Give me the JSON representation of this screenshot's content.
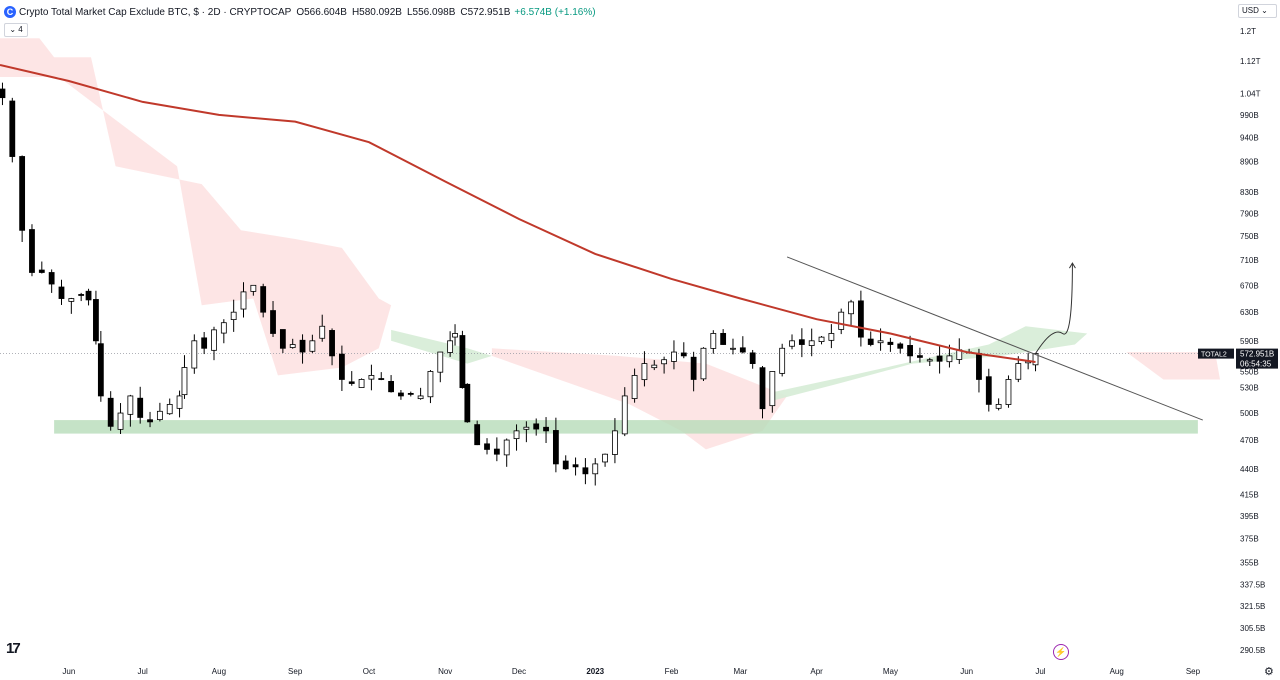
{
  "header": {
    "symbol_icon": "C",
    "title": "Crypto Total Market Cap Exclude BTC, $ · 2D · CRYPTOCAP",
    "open": "O566.604B",
    "high": "H580.092B",
    "low": "L556.098B",
    "close": "C572.951B",
    "change": "+6.574B (+1.16%)"
  },
  "indicators_toggle": "⌄ 4",
  "currency": "USD ⌄",
  "tv_logo": "17",
  "bolt_icon": "⚡",
  "gear_icon": "⚙",
  "colors": {
    "up_candle": "#ffffff",
    "down_candle": "#000000",
    "moving_average": "#c0392b",
    "cloud_bear": "#fde2e2",
    "cloud_bull": "#d6ecd6",
    "support_zone": "#b7dcb9",
    "trendline": "#555555",
    "price_label_bg": "#131722"
  },
  "chart_data": {
    "type": "candlestick",
    "symbol": "TOTAL2",
    "timeframe": "2D",
    "scale": "log",
    "y_ticks": [
      "1.2T",
      "1.12T",
      "1.04T",
      "990B",
      "940B",
      "890B",
      "830B",
      "790B",
      "750B",
      "710B",
      "670B",
      "630B",
      "590B",
      "550B",
      "530B",
      "500B",
      "470B",
      "440B",
      "415B",
      "395B",
      "375B",
      "355B",
      "337.5B",
      "321.5B",
      "305.5B",
      "290.5B"
    ],
    "y_tick_values": [
      1200,
      1120,
      1040,
      990,
      940,
      890,
      830,
      790,
      750,
      710,
      670,
      630,
      590,
      550,
      530,
      500,
      470,
      440,
      415,
      395,
      375,
      355,
      337.5,
      321.5,
      305.5,
      290.5
    ],
    "x_ticks": [
      "Jun",
      "Jul",
      "Aug",
      "Sep",
      "Oct",
      "Nov",
      "Dec",
      "2023",
      "Feb",
      "Mar",
      "Apr",
      "May",
      "Jun",
      "Jul",
      "Aug",
      "Sep"
    ],
    "x_tick_dates": [
      "2022-06-01",
      "2022-07-01",
      "2022-08-01",
      "2022-09-01",
      "2022-10-01",
      "2022-11-01",
      "2022-12-01",
      "2023-01-01",
      "2023-02-01",
      "2023-03-01",
      "2023-04-01",
      "2023-05-01",
      "2023-06-01",
      "2023-07-01",
      "2023-08-01",
      "2023-09-01"
    ],
    "x_range": [
      "2022-05-04",
      "2023-09-12"
    ],
    "last_date": "2023-06-29",
    "price_label": {
      "symbol": "TOTAL2",
      "value": "572.951B",
      "countdown": "06:54:35",
      "price": 572.951
    },
    "closes": [
      {
        "date": "2022-05-05",
        "close": 1030
      },
      {
        "date": "2022-05-09",
        "close": 900
      },
      {
        "date": "2022-05-13",
        "close": 760
      },
      {
        "date": "2022-05-17",
        "close": 690
      },
      {
        "date": "2022-05-21",
        "close": 690
      },
      {
        "date": "2022-05-25",
        "close": 672
      },
      {
        "date": "2022-05-29",
        "close": 650
      },
      {
        "date": "2022-06-02",
        "close": 650
      },
      {
        "date": "2022-06-06",
        "close": 655
      },
      {
        "date": "2022-06-09",
        "close": 648
      },
      {
        "date": "2022-06-12",
        "close": 590
      },
      {
        "date": "2022-06-14",
        "close": 520
      },
      {
        "date": "2022-06-18",
        "close": 485
      },
      {
        "date": "2022-06-22",
        "close": 500
      },
      {
        "date": "2022-06-26",
        "close": 520
      },
      {
        "date": "2022-06-30",
        "close": 495
      },
      {
        "date": "2022-07-04",
        "close": 490
      },
      {
        "date": "2022-07-08",
        "close": 502
      },
      {
        "date": "2022-07-12",
        "close": 510
      },
      {
        "date": "2022-07-16",
        "close": 520
      },
      {
        "date": "2022-07-18",
        "close": 555
      },
      {
        "date": "2022-07-22",
        "close": 590
      },
      {
        "date": "2022-07-26",
        "close": 580
      },
      {
        "date": "2022-07-30",
        "close": 605
      },
      {
        "date": "2022-08-03",
        "close": 615
      },
      {
        "date": "2022-08-07",
        "close": 630
      },
      {
        "date": "2022-08-11",
        "close": 660
      },
      {
        "date": "2022-08-15",
        "close": 670
      },
      {
        "date": "2022-08-19",
        "close": 630
      },
      {
        "date": "2022-08-23",
        "close": 600
      },
      {
        "date": "2022-08-27",
        "close": 580
      },
      {
        "date": "2022-08-31",
        "close": 585
      },
      {
        "date": "2022-09-04",
        "close": 575
      },
      {
        "date": "2022-09-08",
        "close": 590
      },
      {
        "date": "2022-09-12",
        "close": 610
      },
      {
        "date": "2022-09-16",
        "close": 570
      },
      {
        "date": "2022-09-20",
        "close": 540
      },
      {
        "date": "2022-09-24",
        "close": 535
      },
      {
        "date": "2022-09-28",
        "close": 540
      },
      {
        "date": "2022-10-02",
        "close": 545
      },
      {
        "date": "2022-10-06",
        "close": 540
      },
      {
        "date": "2022-10-10",
        "close": 525
      },
      {
        "date": "2022-10-14",
        "close": 520
      },
      {
        "date": "2022-10-18",
        "close": 522
      },
      {
        "date": "2022-10-22",
        "close": 520
      },
      {
        "date": "2022-10-26",
        "close": 550
      },
      {
        "date": "2022-10-30",
        "close": 575
      },
      {
        "date": "2022-11-03",
        "close": 590
      },
      {
        "date": "2022-11-05",
        "close": 600
      },
      {
        "date": "2022-11-08",
        "close": 530
      },
      {
        "date": "2022-11-10",
        "close": 490
      },
      {
        "date": "2022-11-14",
        "close": 465
      },
      {
        "date": "2022-11-18",
        "close": 460
      },
      {
        "date": "2022-11-22",
        "close": 455
      },
      {
        "date": "2022-11-26",
        "close": 470
      },
      {
        "date": "2022-11-30",
        "close": 480
      },
      {
        "date": "2022-12-04",
        "close": 484
      },
      {
        "date": "2022-12-08",
        "close": 482
      },
      {
        "date": "2022-12-12",
        "close": 480
      },
      {
        "date": "2022-12-16",
        "close": 445
      },
      {
        "date": "2022-12-20",
        "close": 440
      },
      {
        "date": "2022-12-24",
        "close": 442
      },
      {
        "date": "2022-12-28",
        "close": 435
      },
      {
        "date": "2023-01-01",
        "close": 445
      },
      {
        "date": "2023-01-05",
        "close": 455
      },
      {
        "date": "2023-01-09",
        "close": 480
      },
      {
        "date": "2023-01-13",
        "close": 520
      },
      {
        "date": "2023-01-17",
        "close": 545
      },
      {
        "date": "2023-01-21",
        "close": 560
      },
      {
        "date": "2023-01-25",
        "close": 558
      },
      {
        "date": "2023-01-29",
        "close": 565
      },
      {
        "date": "2023-02-02",
        "close": 575
      },
      {
        "date": "2023-02-06",
        "close": 570
      },
      {
        "date": "2023-02-10",
        "close": 540
      },
      {
        "date": "2023-02-14",
        "close": 580
      },
      {
        "date": "2023-02-18",
        "close": 600
      },
      {
        "date": "2023-02-22",
        "close": 585
      },
      {
        "date": "2023-02-26",
        "close": 580
      },
      {
        "date": "2023-03-02",
        "close": 575
      },
      {
        "date": "2023-03-06",
        "close": 560
      },
      {
        "date": "2023-03-10",
        "close": 505
      },
      {
        "date": "2023-03-14",
        "close": 550
      },
      {
        "date": "2023-03-18",
        "close": 580
      },
      {
        "date": "2023-03-22",
        "close": 590
      },
      {
        "date": "2023-03-26",
        "close": 585
      },
      {
        "date": "2023-03-30",
        "close": 590
      },
      {
        "date": "2023-04-03",
        "close": 595
      },
      {
        "date": "2023-04-07",
        "close": 600
      },
      {
        "date": "2023-04-11",
        "close": 630
      },
      {
        "date": "2023-04-15",
        "close": 645
      },
      {
        "date": "2023-04-19",
        "close": 595
      },
      {
        "date": "2023-04-23",
        "close": 585
      },
      {
        "date": "2023-04-27",
        "close": 590
      },
      {
        "date": "2023-05-01",
        "close": 585
      },
      {
        "date": "2023-05-05",
        "close": 580
      },
      {
        "date": "2023-05-09",
        "close": 570
      },
      {
        "date": "2023-05-13",
        "close": 568
      },
      {
        "date": "2023-05-17",
        "close": 565
      },
      {
        "date": "2023-05-21",
        "close": 563
      },
      {
        "date": "2023-05-25",
        "close": 570
      },
      {
        "date": "2023-05-29",
        "close": 578
      },
      {
        "date": "2023-06-02",
        "close": 575
      },
      {
        "date": "2023-06-06",
        "close": 540
      },
      {
        "date": "2023-06-10",
        "close": 510
      },
      {
        "date": "2023-06-14",
        "close": 510
      },
      {
        "date": "2023-06-18",
        "close": 540
      },
      {
        "date": "2023-06-22",
        "close": 560
      },
      {
        "date": "2023-06-26",
        "close": 563
      },
      {
        "date": "2023-06-29",
        "close": 573
      }
    ],
    "moving_average": [
      {
        "date": "2022-05-04",
        "value": 1110
      },
      {
        "date": "2022-06-01",
        "value": 1070
      },
      {
        "date": "2022-07-01",
        "value": 1020
      },
      {
        "date": "2022-08-01",
        "value": 990
      },
      {
        "date": "2022-09-01",
        "value": 975
      },
      {
        "date": "2022-10-01",
        "value": 930
      },
      {
        "date": "2022-11-01",
        "value": 850
      },
      {
        "date": "2022-12-01",
        "value": 780
      },
      {
        "date": "2023-01-01",
        "value": 720
      },
      {
        "date": "2023-02-01",
        "value": 680
      },
      {
        "date": "2023-03-01",
        "value": 650
      },
      {
        "date": "2023-04-01",
        "value": 620
      },
      {
        "date": "2023-05-01",
        "value": 600
      },
      {
        "date": "2023-06-01",
        "value": 575
      },
      {
        "date": "2023-06-29",
        "value": 562
      }
    ],
    "ichimoku_cloud": [
      {
        "kind": "bear",
        "points": [
          {
            "date": "2022-05-04",
            "price": 1180
          },
          {
            "date": "2022-05-20",
            "price": 1180
          },
          {
            "date": "2022-05-26",
            "price": 1130
          },
          {
            "date": "2022-06-10",
            "price": 1130
          },
          {
            "date": "2022-06-20",
            "price": 880
          },
          {
            "date": "2022-07-25",
            "price": 845
          },
          {
            "date": "2022-08-10",
            "price": 760
          },
          {
            "date": "2022-09-01",
            "price": 745
          },
          {
            "date": "2022-09-20",
            "price": 730
          },
          {
            "date": "2022-10-05",
            "price": 650
          },
          {
            "date": "2022-10-10",
            "price": 640
          },
          {
            "date": "2022-10-05",
            "price": 580
          },
          {
            "date": "2022-09-20",
            "price": 555
          },
          {
            "date": "2022-08-25",
            "price": 545
          },
          {
            "date": "2022-08-15",
            "price": 650
          },
          {
            "date": "2022-07-25",
            "price": 640
          },
          {
            "date": "2022-07-15",
            "price": 880
          },
          {
            "date": "2022-06-15",
            "price": 1000
          },
          {
            "date": "2022-05-28",
            "price": 1080
          },
          {
            "date": "2022-05-04",
            "price": 1080
          }
        ]
      },
      {
        "kind": "bull",
        "points": [
          {
            "date": "2022-10-10",
            "price": 605
          },
          {
            "date": "2022-11-10",
            "price": 580
          },
          {
            "date": "2022-11-20",
            "price": 570
          },
          {
            "date": "2022-11-10",
            "price": 560
          },
          {
            "date": "2022-10-10",
            "price": 590
          }
        ]
      },
      {
        "kind": "bear",
        "points": [
          {
            "date": "2022-11-20",
            "price": 580
          },
          {
            "date": "2023-01-10",
            "price": 570
          },
          {
            "date": "2023-02-15",
            "price": 560
          },
          {
            "date": "2023-03-20",
            "price": 520
          },
          {
            "date": "2023-03-10",
            "price": 480
          },
          {
            "date": "2023-02-15",
            "price": 460
          },
          {
            "date": "2023-02-05",
            "price": 480
          },
          {
            "date": "2023-01-15",
            "price": 510
          },
          {
            "date": "2022-11-20",
            "price": 570
          }
        ]
      },
      {
        "kind": "bull",
        "points": [
          {
            "date": "2023-03-15",
            "price": 525
          },
          {
            "date": "2023-04-15",
            "price": 545
          },
          {
            "date": "2023-05-20",
            "price": 570
          },
          {
            "date": "2023-06-10",
            "price": 585
          },
          {
            "date": "2023-06-25",
            "price": 610
          },
          {
            "date": "2023-07-20",
            "price": 600
          },
          {
            "date": "2023-07-15",
            "price": 585
          },
          {
            "date": "2023-06-15",
            "price": 570
          },
          {
            "date": "2023-05-10",
            "price": 560
          },
          {
            "date": "2023-04-10",
            "price": 535
          },
          {
            "date": "2023-03-15",
            "price": 515
          }
        ]
      },
      {
        "kind": "bear",
        "points": [
          {
            "date": "2023-08-05",
            "price": 575
          },
          {
            "date": "2023-09-10",
            "price": 575
          },
          {
            "date": "2023-09-12",
            "price": 540
          },
          {
            "date": "2023-08-20",
            "price": 540
          }
        ]
      }
    ],
    "support_zone": {
      "start": "2022-05-26",
      "end": "2023-09-03",
      "high": 492,
      "low": 477
    },
    "trendline": {
      "start": {
        "date": "2023-03-20",
        "price": 715
      },
      "end": {
        "date": "2023-09-05",
        "price": 492
      }
    },
    "projection_arrow": [
      {
        "date": "2023-06-29",
        "price": 573
      },
      {
        "date": "2023-07-06",
        "price": 610
      },
      {
        "date": "2023-07-10",
        "price": 600
      },
      {
        "date": "2023-07-14",
        "price": 705
      }
    ],
    "crosshair_price": 572.951,
    "grid": false
  }
}
